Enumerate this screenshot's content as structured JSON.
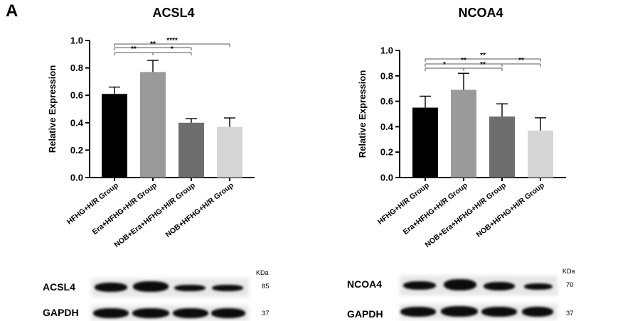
{
  "panel_label": "A",
  "chart_data": [
    {
      "type": "bar",
      "title": "ACSL4",
      "ylabel": "Relative Expression",
      "ylim": [
        0,
        1.0
      ],
      "yticks": [
        "0.0",
        "0.2",
        "0.4",
        "0.6",
        "0.8",
        "1.0"
      ],
      "categories": [
        "HFHG+H/R Group",
        "Era+HFHG+H/R Group",
        "NOB+Era+HFHG+H/R Group",
        "NOB+HFHG+H/R Group"
      ],
      "values": [
        0.61,
        0.77,
        0.4,
        0.37
      ],
      "errors": [
        0.05,
        0.085,
        0.03,
        0.065
      ],
      "colors": [
        "#000000",
        "#9a9a9a",
        "#6e6e6e",
        "#d6d6d6"
      ],
      "significance": [
        {
          "from": 0,
          "to": 3,
          "label": "****"
        },
        {
          "from": 0,
          "to": 2,
          "label": "**"
        },
        {
          "from": 0,
          "to": 1,
          "label": "**"
        },
        {
          "from": 1,
          "to": 2,
          "label": "*"
        }
      ],
      "grid": false,
      "legend": "none"
    },
    {
      "type": "bar",
      "title": "NCOA4",
      "ylabel": "Relative Expression",
      "ylim": [
        0,
        1.0
      ],
      "yticks": [
        "0.0",
        "0.2",
        "0.4",
        "0.6",
        "0.8",
        "1.0"
      ],
      "categories": [
        "HFHG+H/R Group",
        "Era+HFHG+H/R Group",
        "NOB+Era+HFHG+H/R Group",
        "NOB+HFHG+H/R Group"
      ],
      "values": [
        0.55,
        0.69,
        0.48,
        0.37
      ],
      "errors": [
        0.09,
        0.13,
        0.1,
        0.1
      ],
      "colors": [
        "#000000",
        "#9a9a9a",
        "#6e6e6e",
        "#d6d6d6"
      ],
      "significance": [
        {
          "from": 0,
          "to": 3,
          "label": "**"
        },
        {
          "from": 0,
          "to": 2,
          "label": "**"
        },
        {
          "from": 2,
          "to": 3,
          "label": "**"
        },
        {
          "from": 0,
          "to": 1,
          "label": "*"
        },
        {
          "from": 1,
          "to": 2,
          "label": "**"
        }
      ],
      "grid": false,
      "legend": "none"
    }
  ],
  "blots": {
    "left": {
      "protein": "ACSL4",
      "protein_mw": "85",
      "loading": "GAPDH",
      "loading_mw": "37",
      "unit": "KDa"
    },
    "right": {
      "protein": "NCOA4",
      "protein_mw": "70",
      "loading": "GAPDH",
      "loading_mw": "37",
      "unit": "KDa"
    }
  }
}
